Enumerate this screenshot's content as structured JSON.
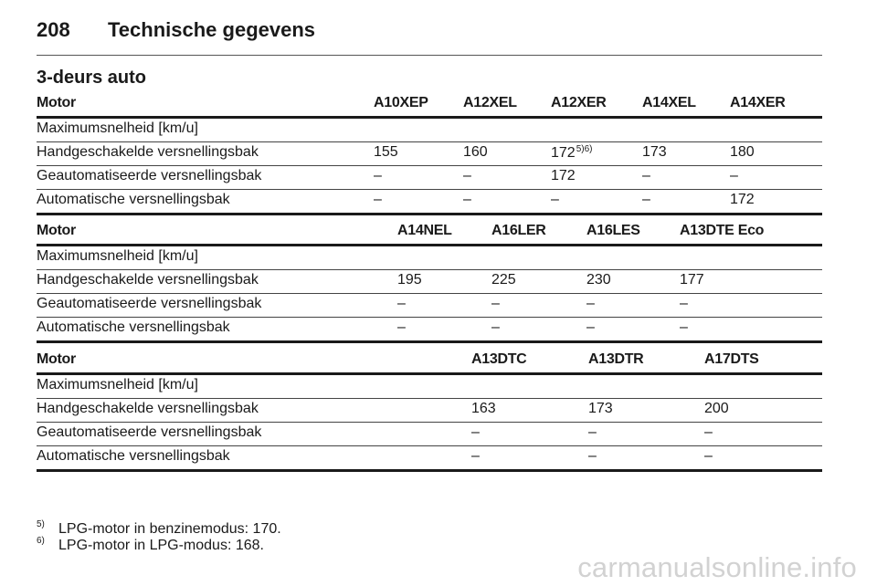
{
  "header": {
    "page_number": "208",
    "title": "Technische gegevens"
  },
  "section_title": "3-deurs auto",
  "tables": [
    {
      "motor_label": "Motor",
      "columns": [
        "A10XEP",
        "A12XEL",
        "A12XER",
        "A14XEL",
        "A14XER"
      ],
      "section_label": "Maximumsnelheid [km/u]",
      "rows": [
        {
          "label": "Handgeschakelde versnellingsbak",
          "values": [
            "155",
            "160",
            "172",
            "173",
            "180"
          ],
          "sup": [
            "",
            "",
            "5)6)",
            "",
            ""
          ]
        },
        {
          "label": "Geautomatiseerde versnellingsbak",
          "values": [
            "–",
            "–",
            "172",
            "–",
            "–"
          ]
        },
        {
          "label": "Automatische versnellingsbak",
          "values": [
            "–",
            "–",
            "–",
            "–",
            "172"
          ]
        }
      ]
    },
    {
      "motor_label": "Motor",
      "columns": [
        "A14NEL",
        "A16LER",
        "A16LES",
        "A13DTE Eco"
      ],
      "section_label": "Maximumsnelheid [km/u]",
      "rows": [
        {
          "label": "Handgeschakelde versnellingsbak",
          "values": [
            "195",
            "225",
            "230",
            "177"
          ]
        },
        {
          "label": "Geautomatiseerde versnellingsbak",
          "values": [
            "–",
            "–",
            "–",
            "–"
          ]
        },
        {
          "label": "Automatische versnellingsbak",
          "values": [
            "–",
            "–",
            "–",
            "–"
          ]
        }
      ]
    },
    {
      "motor_label": "Motor",
      "columns": [
        "A13DTC",
        "A13DTR",
        "A17DTS"
      ],
      "section_label": "Maximumsnelheid [km/u]",
      "rows": [
        {
          "label": "Handgeschakelde versnellingsbak",
          "values": [
            "163",
            "173",
            "200"
          ]
        },
        {
          "label": "Geautomatiseerde versnellingsbak",
          "values": [
            "–",
            "–",
            "–"
          ]
        },
        {
          "label": "Automatische versnellingsbak",
          "values": [
            "–",
            "–",
            "–"
          ]
        }
      ]
    }
  ],
  "footnotes": [
    {
      "mark": "5)",
      "text": "LPG-motor in benzinemodus: 170."
    },
    {
      "mark": "6)",
      "text": "LPG-motor in LPG-modus: 168."
    }
  ],
  "watermark": "carmanualsonline.info"
}
